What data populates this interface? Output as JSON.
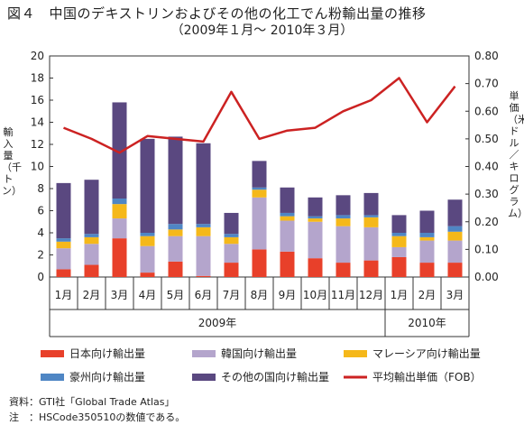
{
  "title_line1": "図４　中国のデキストリンおよびその他の化工でん粉輸出量の推移",
  "title_line2": "（2009年１月～ 2010年３月）",
  "chart_data": {
    "type": "bar",
    "stacked": true,
    "categories": [
      "1月",
      "2月",
      "3月",
      "4月",
      "5月",
      "6月",
      "7月",
      "8月",
      "9月",
      "10月",
      "11月",
      "12月",
      "1月",
      "2月",
      "3月"
    ],
    "year_groups": [
      {
        "label": "2009年",
        "count": 12
      },
      {
        "label": "2010年",
        "count": 3
      }
    ],
    "ylabel_left": "輸入量（千トン）",
    "ylabel_right": "単価（米ドル／キログラム）",
    "ylim_left": [
      0,
      20
    ],
    "ylim_right": [
      0,
      0.8
    ],
    "yticks_left": [
      "0",
      "2",
      "4",
      "6",
      "8",
      "10",
      "12",
      "14",
      "16",
      "18",
      "20"
    ],
    "yticks_right": [
      "0.00",
      "0.10",
      "0.20",
      "0.30",
      "0.40",
      "0.50",
      "0.60",
      "0.70",
      "0.80"
    ],
    "series": [
      {
        "name": "日本向け輸出量",
        "color": "#e8402a",
        "values": [
          0.7,
          1.1,
          3.5,
          0.4,
          1.4,
          0.1,
          1.3,
          2.5,
          2.3,
          1.7,
          1.3,
          1.5,
          1.8,
          1.3,
          1.3
        ]
      },
      {
        "name": "韓国向け輸出量",
        "color": "#b4a5cc",
        "values": [
          1.9,
          1.9,
          1.8,
          2.4,
          2.3,
          3.6,
          1.7,
          4.7,
          2.8,
          3.3,
          3.3,
          3.0,
          0.9,
          2.0,
          2.0
        ]
      },
      {
        "name": "マレーシア向け輸出量",
        "color": "#f5b81a",
        "values": [
          0.6,
          0.6,
          1.3,
          0.9,
          0.6,
          0.8,
          0.6,
          0.7,
          0.4,
          0.3,
          0.7,
          0.9,
          1.0,
          0.3,
          0.8
        ]
      },
      {
        "name": "豪州向け輸出量",
        "color": "#4f86c4",
        "values": [
          0.3,
          0.3,
          0.5,
          0.3,
          0.5,
          0.3,
          0.3,
          0.2,
          0.3,
          0.2,
          0.3,
          0.2,
          0.3,
          0.4,
          0.5
        ]
      },
      {
        "name": "その他の国向け輸出量",
        "color": "#5a4880",
        "values": [
          5.0,
          4.9,
          8.7,
          8.5,
          7.9,
          7.3,
          1.9,
          2.4,
          2.3,
          1.7,
          1.8,
          2.0,
          1.6,
          2.0,
          2.4
        ]
      }
    ],
    "line": {
      "name": "平均輸出単価（FOB）",
      "color": "#cc2222",
      "axis": "right",
      "values": [
        0.54,
        0.5,
        0.45,
        0.51,
        0.5,
        0.49,
        0.67,
        0.5,
        0.53,
        0.54,
        0.6,
        0.64,
        0.72,
        0.56,
        0.69
      ]
    },
    "legend_position": "bottom",
    "grid": false
  },
  "notes": [
    "資料：GTI社「Global Trade Atlas」",
    "注　：HSCode350510の数値である。"
  ]
}
